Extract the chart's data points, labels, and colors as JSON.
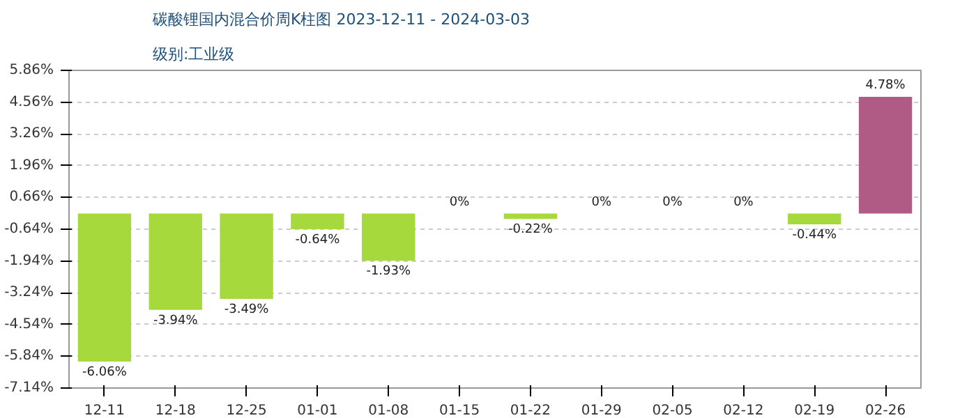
{
  "chart_data": {
    "type": "bar",
    "title": "碳酸锂国内混合价周K柱图 2023-12-11 - 2024-03-03",
    "subtitle": "级别:工业级",
    "categories": [
      "12-11",
      "12-18",
      "12-25",
      "01-01",
      "01-08",
      "01-15",
      "01-22",
      "01-29",
      "02-05",
      "02-12",
      "02-19",
      "02-26"
    ],
    "values": [
      -6.06,
      -3.94,
      -3.49,
      -0.64,
      -1.93,
      0,
      -0.22,
      0,
      0,
      0,
      -0.44,
      4.78
    ],
    "colors": [
      "#a6d93b",
      "#a6d93b",
      "#a6d93b",
      "#a6d93b",
      "#a6d93b",
      "#a6d93b",
      "#a6d93b",
      "#a6d93b",
      "#a6d93b",
      "#a6d93b",
      "#a6d93b",
      "#b05a86"
    ],
    "value_labels": [
      "-6.06%",
      "-3.94%",
      "-3.49%",
      "-0.64%",
      "-1.93%",
      "0%",
      "-0.22%",
      "0%",
      "0%",
      "0%",
      "-0.44%",
      "4.78%"
    ],
    "ylim": [
      -7.14,
      5.86
    ],
    "yticks": [
      {
        "value": 5.86,
        "label": "5.86%"
      },
      {
        "value": 4.56,
        "label": "4.56%"
      },
      {
        "value": 3.26,
        "label": "3.26%"
      },
      {
        "value": 1.96,
        "label": "1.96%"
      },
      {
        "value": 0.66,
        "label": "0.66%"
      },
      {
        "value": -0.64,
        "label": "-0.64%"
      },
      {
        "value": -1.94,
        "label": "-1.94%"
      },
      {
        "value": -3.24,
        "label": "-3.24%"
      },
      {
        "value": -4.54,
        "label": "-4.54%"
      },
      {
        "value": -5.84,
        "label": "-5.84%"
      },
      {
        "value": -7.14,
        "label": "-7.14%"
      }
    ],
    "grid": "y"
  }
}
